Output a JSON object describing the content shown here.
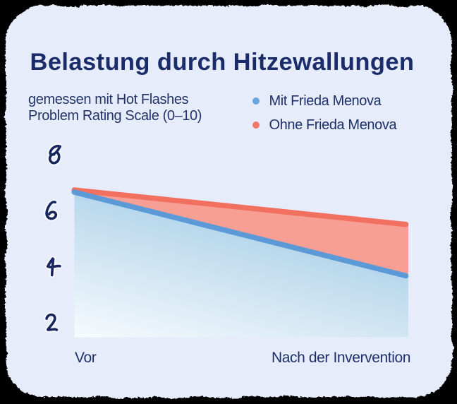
{
  "page": {
    "background_color": "#000000"
  },
  "card": {
    "background_color": "#e7ecfa"
  },
  "header": {
    "title": "Belastung durch Hitzewallungen",
    "subtitle_line1": "gemessen mit Hot Flashes",
    "subtitle_line2": "Problem Rating Scale (0–10)"
  },
  "legend": {
    "items": [
      {
        "label": "Mit Frieda Menova",
        "dot_color": "#6ba7dd"
      },
      {
        "label": "Ohne Frieda Menova",
        "dot_color": "#f3776a"
      }
    ]
  },
  "chart_data": {
    "type": "area",
    "title": "Belastung durch Hitzewallungen",
    "subtitle": "gemessen mit Hot Flashes Problem Rating Scale (0–10)",
    "categories": [
      "Vor",
      "Nach der Invervention"
    ],
    "series": [
      {
        "name": "Mit Frieda Menova",
        "values": [
          6.7,
          3.65
        ],
        "line_color": "#5b9ad7",
        "fill_gradient": [
          "#b7d7ec",
          "#feffff"
        ]
      },
      {
        "name": "Ohne Frieda Menova",
        "values": [
          6.7,
          5.5
        ],
        "line_color": "#f2705f",
        "fill_color": "#f79e95"
      }
    ],
    "yticks": [
      8,
      6,
      4,
      2
    ],
    "ylim": [
      1.4,
      8.6
    ],
    "grid": false,
    "legend_position": "top-right",
    "ytick_color": "#17265e"
  }
}
